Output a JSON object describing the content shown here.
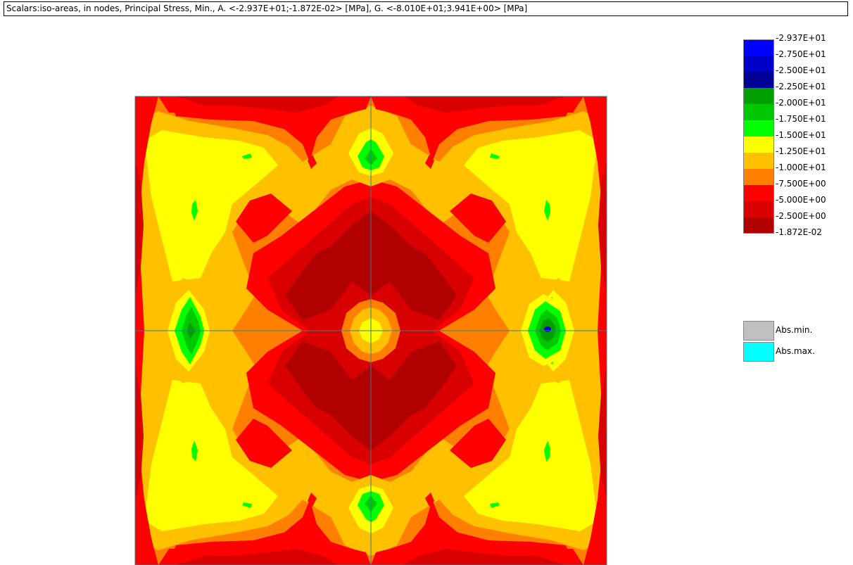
{
  "header": {
    "title": "Scalars:iso-areas, in nodes, Principal Stress, Min., A. <-2.937E+01;-1.872E-02> [MPa], G. <-8.010E+01;3.941E+00> [MPa]"
  },
  "legend": {
    "labels": [
      "-2.937E+01",
      "-2.750E+01",
      "-2.500E+01",
      "-2.250E+01",
      "-2.000E+01",
      "-1.750E+01",
      "-1.500E+01",
      "-1.250E+01",
      "-1.000E+01",
      "-7.500E+00",
      "-5.000E+00",
      "-2.500E+00",
      "-1.872E-02"
    ],
    "colors": [
      "#0000ff",
      "#0000c8",
      "#000096",
      "#00a000",
      "#00c800",
      "#00ff00",
      "#ffff00",
      "#ffc000",
      "#ff8000",
      "#ff0000",
      "#d80000",
      "#b00000"
    ],
    "extras": [
      {
        "label": "Abs.min.",
        "color": "#c0c0c0"
      },
      {
        "label": "Abs.max.",
        "color": "#00ffff"
      }
    ]
  },
  "plot": {
    "background_color": "#ff0000",
    "grid_color": "#2f7f8f"
  }
}
